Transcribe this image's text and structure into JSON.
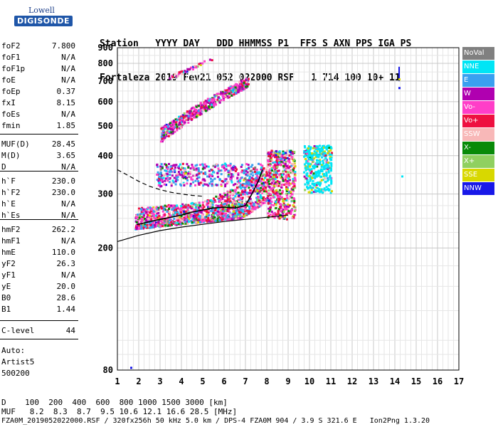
{
  "header": {
    "line1": "Station   YYYY DAY   DDD HHMMSS P1  FFS S AXN PPS IGA PS",
    "line2": "Fortaleza 2019 Fev21 052 022000 RSF   1 714 100 10+ 11"
  },
  "logo": {
    "line1": "Lowell",
    "line2": "DIGISONDE"
  },
  "params": [
    {
      "label": "foF2",
      "value": "7.800"
    },
    {
      "label": "foF1",
      "value": "N/A"
    },
    {
      "label": "foF1p",
      "value": "N/A"
    },
    {
      "label": "foE",
      "value": "N/A"
    },
    {
      "label": "foEp",
      "value": "0.37"
    },
    {
      "label": "fxI",
      "value": "8.15"
    },
    {
      "label": "foEs",
      "value": "N/A"
    },
    {
      "label": "fmin",
      "value": "1.85"
    },
    {
      "label": "MUF(D)",
      "value": "28.45"
    },
    {
      "label": "M(D)",
      "value": "3.65"
    },
    {
      "label": "D",
      "value": "N/A"
    },
    {
      "label": "h`F",
      "value": "230.0"
    },
    {
      "label": "h`F2",
      "value": "230.0"
    },
    {
      "label": "h`E",
      "value": "N/A"
    },
    {
      "label": "h`Es",
      "value": "N/A"
    },
    {
      "label": "hmF2",
      "value": "262.2"
    },
    {
      "label": "hmF1",
      "value": "N/A"
    },
    {
      "label": "hmE",
      "value": "110.0"
    },
    {
      "label": "yF2",
      "value": "26.3"
    },
    {
      "label": "yF1",
      "value": "N/A"
    },
    {
      "label": "yE",
      "value": "20.0"
    },
    {
      "label": "B0",
      "value": "28.6"
    },
    {
      "label": "B1",
      "value": "1.44"
    },
    {
      "label": "C-level",
      "value": "44"
    }
  ],
  "auto": [
    "Auto:",
    "Artist5",
    "500200"
  ],
  "legend": [
    {
      "label": "NoVal",
      "color": "#808080"
    },
    {
      "label": "NNE",
      "color": "#00e5f5"
    },
    {
      "label": "E",
      "color": "#3aa0f0"
    },
    {
      "label": "W",
      "color": "#b000b0"
    },
    {
      "label": "Vo-",
      "color": "#ff3ec8"
    },
    {
      "label": "Vo+",
      "color": "#ee1040"
    },
    {
      "label": "SSW",
      "color": "#f8b8b8"
    },
    {
      "label": "X-",
      "color": "#088a08"
    },
    {
      "label": "X+",
      "color": "#90d060"
    },
    {
      "label": "SSE",
      "color": "#d8d800"
    },
    {
      "label": "NNW",
      "color": "#1818e8"
    }
  ],
  "footer": {
    "d_line": "D    100  200  400  600  800 1000 1500 3000 [km]",
    "muf_line": "MUF   8.2  8.3  8.7  9.5 10.6 12.1 16.6 28.5 [MHz]",
    "file_line": "FZA0M_2019052022000.RSF / 320fx256h 50 kHz 5.0 km / DPS-4 FZA0M 904 / 3.9 S 321.6 E   Ion2Png 1.3.20"
  },
  "chart_data": {
    "type": "scatter",
    "x_ticks": [
      "1",
      "2",
      "3",
      "4",
      "5",
      "6",
      "7",
      "8",
      "9",
      "10",
      "11",
      "12",
      "13",
      "14",
      "15",
      "16",
      "17"
    ],
    "y_ticks": [
      "80",
      "200",
      "300",
      "400",
      "500",
      "600",
      "700",
      "800",
      "900"
    ],
    "xlim": [
      1,
      17
    ],
    "y_scale": "log",
    "ylim": [
      80,
      900
    ],
    "grid": true,
    "legend_position": "right",
    "echo_clusters": [
      {
        "name": "F-layer O/X traces",
        "x": [
          1.8,
          8.0
        ],
        "y": [
          225,
          330
        ]
      },
      {
        "name": "F-layer extension",
        "x": [
          8.0,
          9.3
        ],
        "y": [
          250,
          420
        ]
      },
      {
        "name": "spread F",
        "x": [
          9.7,
          11.0
        ],
        "y": [
          300,
          440
        ]
      },
      {
        "name": "second hop",
        "x": [
          3.0,
          7.2
        ],
        "y": [
          460,
          730
        ]
      },
      {
        "name": "multi-hop scatter",
        "x": [
          3.3,
          5.4
        ],
        "y": [
          720,
          850
        ]
      },
      {
        "name": "isolated echoes",
        "x": [
          14.2,
          14.2
        ],
        "y": [
          670,
          780
        ]
      }
    ],
    "profile_curve": {
      "x": [
        1.9,
        2.4,
        3,
        3.5,
        4,
        4.5,
        5,
        5.5,
        6,
        6.5,
        7,
        7.3,
        7.6,
        7.8
      ],
      "y": [
        238,
        243,
        248,
        252,
        256,
        262,
        266,
        270,
        272,
        270,
        275,
        300,
        330,
        360
      ]
    },
    "dashed_curve": {
      "x": [
        1.0,
        1.5,
        2.0,
        2.5,
        3.0,
        3.5,
        4.0,
        4.5,
        5.0
      ],
      "y": [
        360,
        345,
        330,
        318,
        310,
        304,
        300,
        297,
        295
      ]
    },
    "lower_curve": {
      "x": [
        1.0,
        2.0,
        3.0,
        4.0,
        5.0,
        6.0,
        7.0,
        8.0,
        9.0
      ],
      "y": [
        210,
        220,
        228,
        234,
        239,
        244,
        248,
        252,
        256
      ]
    }
  }
}
